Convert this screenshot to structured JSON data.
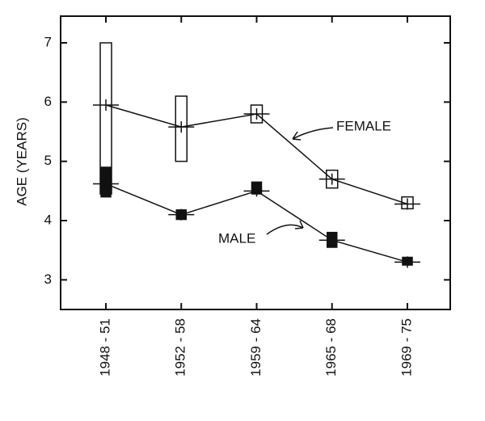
{
  "chart_data": {
    "type": "line",
    "y_label": "AGE (YEARS)",
    "categories": [
      "1948 - 51",
      "1952 - 58",
      "1959 - 64",
      "1965 - 68",
      "1969 - 75"
    ],
    "series": [
      {
        "name": "FEMALE",
        "color": "#111111",
        "values": [
          5.95,
          5.58,
          5.8,
          4.7,
          4.28
        ],
        "low": [
          4.45,
          5.0,
          5.65,
          4.55,
          4.2
        ],
        "high": [
          7.0,
          6.1,
          5.95,
          4.85,
          4.4
        ]
      },
      {
        "name": "MALE",
        "color": "#111111",
        "values": [
          4.62,
          4.1,
          4.5,
          3.67,
          3.3
        ],
        "low": [
          4.4,
          4.02,
          4.45,
          3.55,
          3.25
        ],
        "high": [
          4.9,
          4.18,
          4.65,
          3.8,
          3.38
        ]
      }
    ],
    "ylim": [
      2.5,
      7.45
    ],
    "yticks": [
      3,
      4,
      5,
      6,
      7
    ]
  }
}
